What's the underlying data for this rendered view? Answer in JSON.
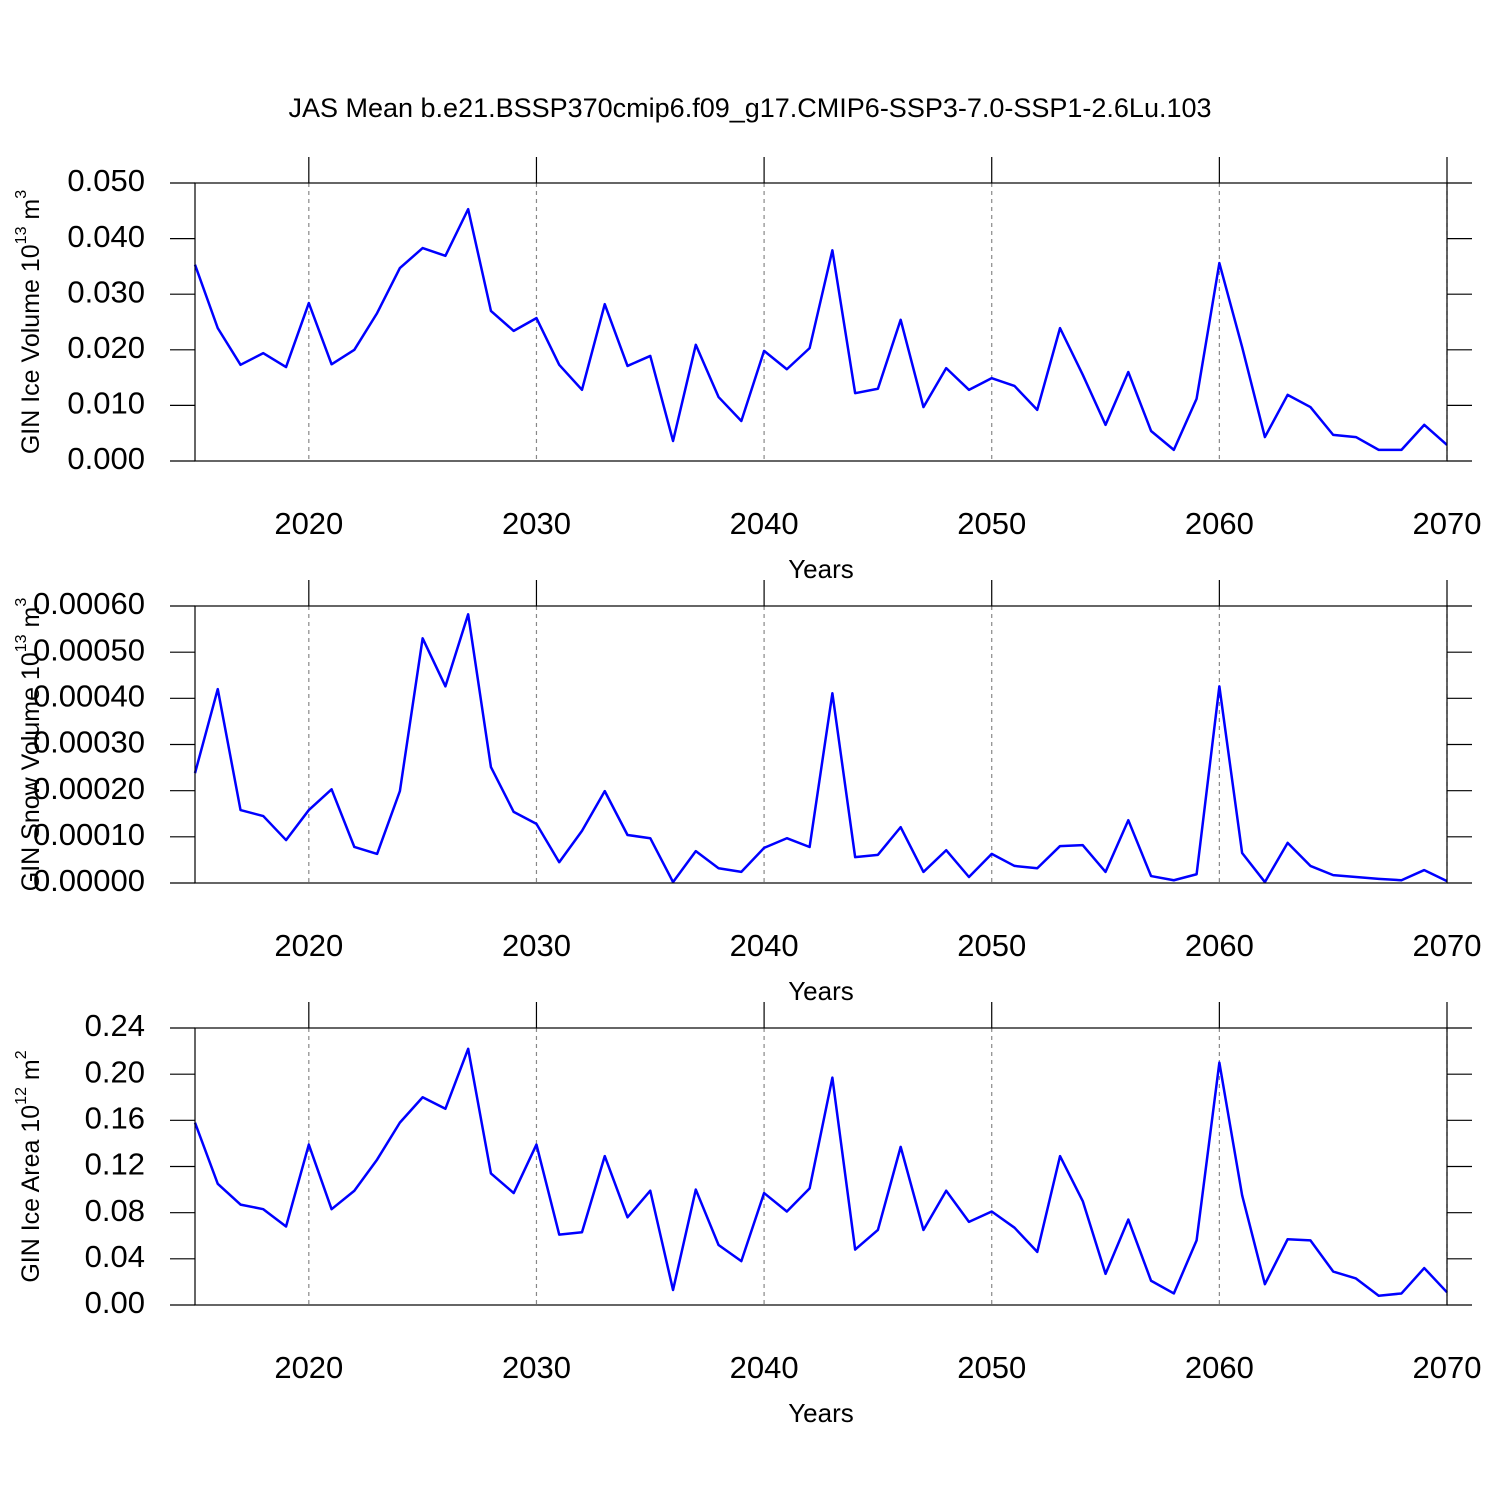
{
  "chart_data": [
    {
      "type": "line",
      "title": "JAS Mean b.e21.BSSP370cmip6.f09_g17.CMIP6-SSP3-7.0-SSP1-2.6Lu.103",
      "xlabel": "Years",
      "ylabel": [
        "GIN Ice Volume 10",
        "13",
        " m",
        "3"
      ],
      "x": [
        2015,
        2016,
        2017,
        2018,
        2019,
        2020,
        2021,
        2022,
        2023,
        2024,
        2025,
        2026,
        2027,
        2028,
        2029,
        2030,
        2031,
        2032,
        2033,
        2034,
        2035,
        2036,
        2037,
        2038,
        2039,
        2040,
        2041,
        2042,
        2043,
        2044,
        2045,
        2046,
        2047,
        2048,
        2049,
        2050,
        2051,
        2052,
        2053,
        2054,
        2055,
        2056,
        2057,
        2058,
        2059,
        2060,
        2061,
        2062,
        2063,
        2064,
        2065,
        2066,
        2067,
        2068,
        2069,
        2070
      ],
      "series": [
        {
          "color": "#0000ff",
          "values": [
            0.0353,
            0.0239,
            0.0173,
            0.0194,
            0.0169,
            0.0284,
            0.0174,
            0.02,
            0.0266,
            0.0347,
            0.0383,
            0.0369,
            0.0453,
            0.027,
            0.0234,
            0.0257,
            0.0173,
            0.0128,
            0.0282,
            0.0171,
            0.0189,
            0.0036,
            0.0209,
            0.0115,
            0.0072,
            0.0198,
            0.0165,
            0.0203,
            0.0379,
            0.0122,
            0.013,
            0.0254,
            0.0097,
            0.0167,
            0.0128,
            0.0149,
            0.0135,
            0.0092,
            0.0239,
            0.0155,
            0.0065,
            0.016,
            0.0054,
            0.002,
            0.0112,
            0.0356,
            0.0205,
            0.0043,
            0.0119,
            0.0097,
            0.0047,
            0.0043,
            0.002,
            0.002,
            0.0065,
            0.0029
          ]
        }
      ],
      "xlim": [
        2015,
        2070
      ],
      "xticks": [
        2020,
        2030,
        2040,
        2050,
        2060,
        2070
      ],
      "ylim": [
        0,
        0.05
      ],
      "yticks": [
        {
          "value": 0,
          "label": "0.000"
        },
        {
          "value": 0.01,
          "label": "0.010"
        },
        {
          "value": 0.02,
          "label": "0.020"
        },
        {
          "value": 0.03,
          "label": "0.030"
        },
        {
          "value": 0.04,
          "label": "0.040"
        },
        {
          "value": 0.05,
          "label": "0.050"
        }
      ],
      "grid": true
    },
    {
      "type": "line",
      "xlabel": "Years",
      "ylabel": [
        "GIN Snow Volume 10",
        "13",
        " m",
        "3"
      ],
      "x": [
        2015,
        2016,
        2017,
        2018,
        2019,
        2020,
        2021,
        2022,
        2023,
        2024,
        2025,
        2026,
        2027,
        2028,
        2029,
        2030,
        2031,
        2032,
        2033,
        2034,
        2035,
        2036,
        2037,
        2038,
        2039,
        2040,
        2041,
        2042,
        2043,
        2044,
        2045,
        2046,
        2047,
        2048,
        2049,
        2050,
        2051,
        2052,
        2053,
        2054,
        2055,
        2056,
        2057,
        2058,
        2059,
        2060,
        2061,
        2062,
        2063,
        2064,
        2065,
        2066,
        2067,
        2068,
        2069,
        2070
      ],
      "series": [
        {
          "color": "#0000ff",
          "values": [
            0.000238,
            0.00042,
            0.000158,
            0.000145,
            9.3e-05,
            0.000158,
            0.000203,
            7.8e-05,
            6.3e-05,
            0.000199,
            0.00053,
            0.000426,
            0.000582,
            0.000251,
            0.000154,
            0.000128,
            4.5e-05,
            0.000113,
            0.000199,
            0.000104,
            9.7e-05,
            2e-06,
            6.9e-05,
            3.2e-05,
            2.4e-05,
            7.6e-05,
            9.7e-05,
            7.8e-05,
            0.000411,
            5.6e-05,
            6.1e-05,
            0.000121,
            2.4e-05,
            7.1e-05,
            1.3e-05,
            6.3e-05,
            3.7e-05,
            3.2e-05,
            8e-05,
            8.2e-05,
            2.4e-05,
            0.000136,
            1.5e-05,
            6e-06,
            1.9e-05,
            0.000426,
            6.5e-05,
            2e-06,
            8.7e-05,
            3.7e-05,
            1.7e-05,
            1.3e-05,
            9e-06,
            6e-06,
            2.8e-05,
            4e-06
          ]
        }
      ],
      "xlim": [
        2015,
        2070
      ],
      "xticks": [
        2020,
        2030,
        2040,
        2050,
        2060,
        2070
      ],
      "ylim": [
        0,
        0.0006
      ],
      "yticks": [
        {
          "value": 0,
          "label": "0.00000"
        },
        {
          "value": 0.0001,
          "label": "0.00010"
        },
        {
          "value": 0.0002,
          "label": "0.00020"
        },
        {
          "value": 0.0003,
          "label": "0.00030"
        },
        {
          "value": 0.0004,
          "label": "0.00040"
        },
        {
          "value": 0.0005,
          "label": "0.00050"
        },
        {
          "value": 0.0006,
          "label": "0.00060"
        }
      ],
      "grid": true
    },
    {
      "type": "line",
      "xlabel": "Years",
      "ylabel": [
        "GIN Ice Area 10",
        "12",
        " m",
        "2"
      ],
      "x": [
        2015,
        2016,
        2017,
        2018,
        2019,
        2020,
        2021,
        2022,
        2023,
        2024,
        2025,
        2026,
        2027,
        2028,
        2029,
        2030,
        2031,
        2032,
        2033,
        2034,
        2035,
        2036,
        2037,
        2038,
        2039,
        2040,
        2041,
        2042,
        2043,
        2044,
        2045,
        2046,
        2047,
        2048,
        2049,
        2050,
        2051,
        2052,
        2053,
        2054,
        2055,
        2056,
        2057,
        2058,
        2059,
        2060,
        2061,
        2062,
        2063,
        2064,
        2065,
        2066,
        2067,
        2068,
        2069,
        2070
      ],
      "series": [
        {
          "color": "#0000ff",
          "values": [
            0.158,
            0.105,
            0.087,
            0.083,
            0.068,
            0.139,
            0.083,
            0.099,
            0.126,
            0.158,
            0.18,
            0.17,
            0.222,
            0.114,
            0.097,
            0.139,
            0.061,
            0.063,
            0.129,
            0.076,
            0.099,
            0.013,
            0.1,
            0.052,
            0.038,
            0.097,
            0.081,
            0.101,
            0.197,
            0.048,
            0.065,
            0.137,
            0.065,
            0.099,
            0.072,
            0.081,
            0.067,
            0.046,
            0.129,
            0.09,
            0.027,
            0.074,
            0.021,
            0.01,
            0.056,
            0.21,
            0.095,
            0.018,
            0.057,
            0.056,
            0.029,
            0.023,
            0.008,
            0.01,
            0.032,
            0.011
          ]
        }
      ],
      "xlim": [
        2015,
        2070
      ],
      "xticks": [
        2020,
        2030,
        2040,
        2050,
        2060,
        2070
      ],
      "ylim": [
        0,
        0.24
      ],
      "yticks": [
        {
          "value": 0,
          "label": "0.00"
        },
        {
          "value": 0.04,
          "label": "0.04"
        },
        {
          "value": 0.08,
          "label": "0.08"
        },
        {
          "value": 0.12,
          "label": "0.12"
        },
        {
          "value": 0.16,
          "label": "0.16"
        },
        {
          "value": 0.2,
          "label": "0.20"
        },
        {
          "value": 0.24,
          "label": "0.24"
        }
      ],
      "grid": true
    }
  ]
}
